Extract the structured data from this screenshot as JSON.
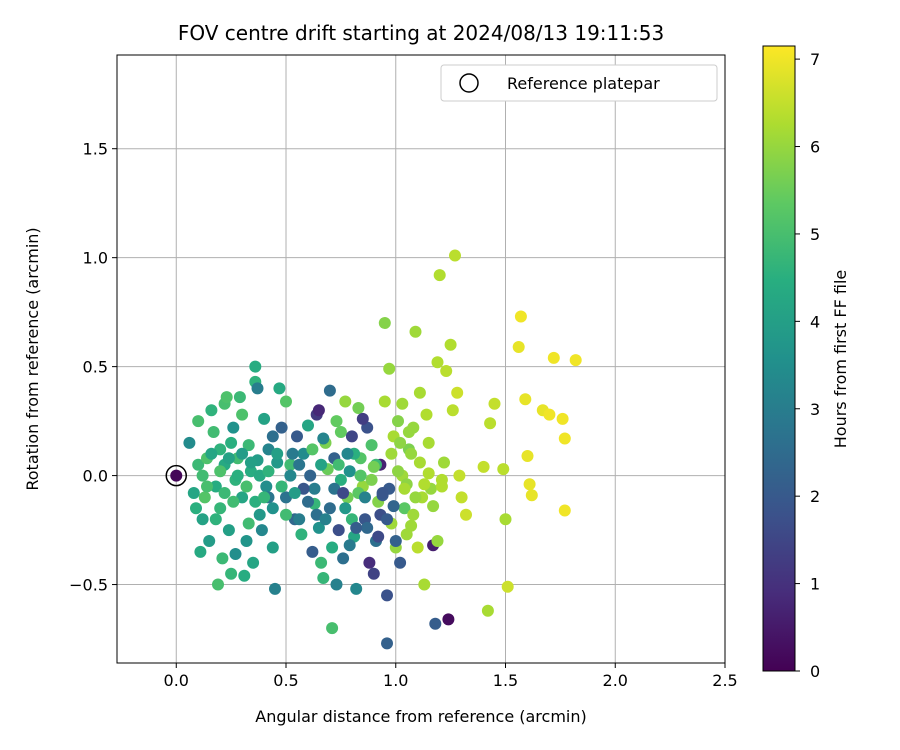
{
  "chart_data": {
    "type": "scatter",
    "title": "FOV centre drift starting at 2024/08/13 19:11:53",
    "xlabel": "Angular distance from reference (arcmin)",
    "ylabel": "Rotation from reference (arcmin)",
    "xlim": [
      -0.27,
      2.5
    ],
    "ylim": [
      -0.86,
      1.93
    ],
    "xticks": [
      "0.0",
      "0.5",
      "1.0",
      "1.5",
      "2.0",
      "2.5"
    ],
    "yticks": [
      "−0.5",
      "0.0",
      "0.5",
      "1.0",
      "1.5"
    ],
    "grid": true,
    "colorbar": {
      "label": "Hours from first FF file",
      "range": [
        0,
        7.15
      ],
      "ticks": [
        "0",
        "1",
        "2",
        "3",
        "4",
        "5",
        "6",
        "7"
      ],
      "colormap": "viridis"
    },
    "legend": {
      "position": "top-right",
      "entries": [
        "Reference platepar"
      ]
    },
    "reference_point": {
      "x": 0.0,
      "y": 0.0,
      "hours": 0.1
    },
    "points": [
      [
        0.06,
        0.15,
        3.4
      ],
      [
        0.08,
        -0.08,
        4.2
      ],
      [
        0.1,
        0.05,
        4.8
      ],
      [
        0.12,
        -0.2,
        4.1
      ],
      [
        0.14,
        0.08,
        5.1
      ],
      [
        0.15,
        -0.3,
        3.9
      ],
      [
        0.17,
        0.2,
        4.9
      ],
      [
        0.18,
        -0.05,
        4.4
      ],
      [
        0.2,
        0.12,
        4.6
      ],
      [
        0.2,
        -0.15,
        4.7
      ],
      [
        0.22,
        0.33,
        5.0
      ],
      [
        0.22,
        0.05,
        4.3
      ],
      [
        0.24,
        -0.25,
        4.0
      ],
      [
        0.25,
        0.15,
        4.5
      ],
      [
        0.26,
        0.22,
        3.6
      ],
      [
        0.27,
        -0.02,
        4.6
      ],
      [
        0.28,
        0.08,
        4.9
      ],
      [
        0.3,
        -0.1,
        4.2
      ],
      [
        0.3,
        0.28,
        5.1
      ],
      [
        0.32,
        -0.3,
        3.7
      ],
      [
        0.33,
        0.14,
        4.8
      ],
      [
        0.34,
        0.02,
        4.4
      ],
      [
        0.36,
        0.5,
        4.4
      ],
      [
        0.36,
        0.43,
        4.6
      ],
      [
        0.37,
        0.4,
        3.0
      ],
      [
        0.38,
        -0.18,
        3.8
      ],
      [
        0.4,
        0.26,
        4.1
      ],
      [
        0.41,
        -0.05,
        3.5
      ],
      [
        0.42,
        0.12,
        3.2
      ],
      [
        0.44,
        0.18,
        2.6
      ],
      [
        0.45,
        -0.52,
        3.1
      ],
      [
        0.47,
        0.4,
        4.3
      ],
      [
        0.48,
        0.22,
        2.2
      ],
      [
        0.5,
        0.34,
        5.2
      ],
      [
        0.5,
        -0.1,
        2.7
      ],
      [
        0.52,
        0.05,
        4.9
      ],
      [
        0.54,
        -0.2,
        2.4
      ],
      [
        0.55,
        0.18,
        2.0
      ],
      [
        0.57,
        -0.27,
        4.6
      ],
      [
        0.58,
        0.1,
        3.4
      ],
      [
        0.6,
        0.23,
        4.2
      ],
      [
        0.62,
        -0.35,
        2.1
      ],
      [
        0.63,
        -0.06,
        3.0
      ],
      [
        0.64,
        0.28,
        1.2
      ],
      [
        0.65,
        0.3,
        0.8
      ],
      [
        0.66,
        -0.4,
        4.8
      ],
      [
        0.67,
        -0.47,
        4.7
      ],
      [
        0.68,
        0.15,
        5.7
      ],
      [
        0.7,
        -0.15,
        2.5
      ],
      [
        0.7,
        0.39,
        2.5
      ],
      [
        0.71,
        -0.7,
        5.0
      ],
      [
        0.72,
        0.08,
        2.2
      ],
      [
        0.73,
        -0.5,
        3.1
      ],
      [
        0.74,
        -0.25,
        1.7
      ],
      [
        0.75,
        0.2,
        5.4
      ],
      [
        0.76,
        -0.38,
        2.6
      ],
      [
        0.77,
        0.34,
        6.0
      ],
      [
        0.78,
        -0.1,
        5.6
      ],
      [
        0.79,
        0.02,
        3.6
      ],
      [
        0.8,
        0.18,
        1.5
      ],
      [
        0.81,
        -0.28,
        4.2
      ],
      [
        0.82,
        -0.52,
        3.3
      ],
      [
        0.83,
        0.31,
        5.6
      ],
      [
        0.84,
        0.08,
        5.2
      ],
      [
        0.85,
        -0.05,
        6.0
      ],
      [
        0.86,
        -0.2,
        1.9
      ],
      [
        0.87,
        0.22,
        1.8
      ],
      [
        0.88,
        -0.4,
        0.9
      ],
      [
        0.89,
        0.14,
        5.1
      ],
      [
        0.9,
        -0.45,
        1.4
      ],
      [
        0.91,
        -0.3,
        2.6
      ],
      [
        0.92,
        -0.12,
        5.8
      ],
      [
        0.93,
        0.05,
        0.7
      ],
      [
        0.94,
        -0.09,
        2.0
      ],
      [
        0.95,
        0.34,
        6.2
      ],
      [
        0.95,
        0.7,
        5.8
      ],
      [
        0.96,
        -0.77,
        2.2
      ],
      [
        0.96,
        -0.55,
        1.8
      ],
      [
        0.97,
        0.49,
        6.0
      ],
      [
        0.98,
        -0.22,
        6.1
      ],
      [
        0.99,
        0.18,
        6.2
      ],
      [
        1.0,
        -0.33,
        6.0
      ],
      [
        1.01,
        0.25,
        5.8
      ],
      [
        1.02,
        -0.4,
        2.0
      ],
      [
        1.03,
        0.0,
        6.1
      ],
      [
        1.04,
        -0.15,
        5.3
      ],
      [
        1.05,
        -0.04,
        5.9
      ],
      [
        1.06,
        0.12,
        5.7
      ],
      [
        1.07,
        -0.23,
        6.1
      ],
      [
        1.08,
        0.22,
        6.0
      ],
      [
        1.09,
        0.66,
        6.1
      ],
      [
        1.1,
        -0.33,
        6.4
      ],
      [
        1.11,
        0.38,
        6.2
      ],
      [
        1.12,
        -0.1,
        6.2
      ],
      [
        1.13,
        -0.5,
        6.2
      ],
      [
        1.14,
        0.28,
        6.3
      ],
      [
        1.15,
        0.01,
        6.3
      ],
      [
        1.16,
        -0.06,
        6.0
      ],
      [
        1.17,
        -0.32,
        0.6
      ],
      [
        1.18,
        -0.68,
        2.1
      ],
      [
        1.19,
        0.52,
        6.3
      ],
      [
        1.2,
        0.92,
        6.3
      ],
      [
        1.21,
        -0.05,
        6.3
      ],
      [
        1.22,
        0.06,
        6.1
      ],
      [
        1.23,
        0.48,
        6.4
      ],
      [
        1.24,
        -0.66,
        0.2
      ],
      [
        1.25,
        0.6,
        6.3
      ],
      [
        1.26,
        0.3,
        6.4
      ],
      [
        1.27,
        1.01,
        6.4
      ],
      [
        1.28,
        0.38,
        6.6
      ],
      [
        1.29,
        0.0,
        6.5
      ],
      [
        1.3,
        -0.1,
        6.5
      ],
      [
        1.32,
        -0.18,
        6.6
      ],
      [
        1.4,
        0.04,
        6.5
      ],
      [
        1.42,
        -0.62,
        6.2
      ],
      [
        1.43,
        0.24,
        6.4
      ],
      [
        1.45,
        0.33,
        6.5
      ],
      [
        1.49,
        0.03,
        6.4
      ],
      [
        1.5,
        -0.2,
        6.2
      ],
      [
        1.51,
        -0.51,
        6.6
      ],
      [
        1.56,
        0.59,
        6.9
      ],
      [
        1.57,
        0.73,
        7.0
      ],
      [
        1.59,
        0.35,
        6.9
      ],
      [
        1.6,
        0.09,
        6.9
      ],
      [
        1.61,
        -0.04,
        6.9
      ],
      [
        1.62,
        -0.09,
        6.9
      ],
      [
        1.67,
        0.3,
        6.9
      ],
      [
        1.7,
        0.28,
        7.0
      ],
      [
        1.72,
        0.54,
        7.0
      ],
      [
        1.76,
        0.26,
        7.0
      ],
      [
        1.77,
        0.17,
        7.0
      ],
      [
        1.77,
        -0.16,
        7.0
      ],
      [
        1.82,
        0.53,
        7.0
      ],
      [
        0.1,
        0.25,
        5.0
      ],
      [
        0.11,
        -0.35,
        4.3
      ],
      [
        0.13,
        -0.1,
        5.2
      ],
      [
        0.16,
        0.3,
        4.6
      ],
      [
        0.19,
        -0.5,
        5.0
      ],
      [
        0.21,
        -0.38,
        4.8
      ],
      [
        0.23,
        0.36,
        5.1
      ],
      [
        0.25,
        -0.45,
        4.7
      ],
      [
        0.27,
        -0.36,
        3.5
      ],
      [
        0.29,
        0.36,
        4.8
      ],
      [
        0.31,
        -0.46,
        4.4
      ],
      [
        0.33,
        -0.22,
        4.9
      ],
      [
        0.35,
        -0.4,
        4.2
      ],
      [
        0.37,
        0.07,
        3.9
      ],
      [
        0.39,
        -0.25,
        3.3
      ],
      [
        0.42,
        -0.1,
        2.8
      ],
      [
        0.44,
        -0.33,
        4.0
      ],
      [
        0.46,
        0.06,
        3.8
      ],
      [
        0.48,
        -0.05,
        4.7
      ],
      [
        0.53,
        0.1,
        2.9
      ],
      [
        0.56,
        -0.2,
        3.0
      ],
      [
        0.58,
        -0.06,
        1.9
      ],
      [
        0.61,
        0.0,
        2.3
      ],
      [
        0.63,
        -0.13,
        4.7
      ],
      [
        0.65,
        -0.24,
        3.6
      ],
      [
        0.67,
        0.17,
        3.2
      ],
      [
        0.69,
        0.03,
        5.5
      ],
      [
        0.71,
        -0.33,
        4.4
      ],
      [
        0.73,
        0.25,
        5.4
      ],
      [
        0.75,
        -0.02,
        4.5
      ],
      [
        0.77,
        -0.15,
        3.8
      ],
      [
        0.79,
        -0.32,
        2.9
      ],
      [
        0.81,
        0.1,
        4.5
      ],
      [
        0.83,
        -0.08,
        5.3
      ],
      [
        0.85,
        0.26,
        1.3
      ],
      [
        0.87,
        -0.24,
        2.4
      ],
      [
        0.89,
        -0.02,
        5.7
      ],
      [
        0.91,
        0.05,
        4.8
      ],
      [
        0.93,
        -0.18,
        1.7
      ],
      [
        0.97,
        -0.06,
        2.0
      ],
      [
        0.99,
        -0.14,
        2.3
      ],
      [
        1.01,
        0.02,
        5.9
      ],
      [
        1.03,
        0.33,
        6.1
      ],
      [
        1.05,
        -0.27,
        6.1
      ],
      [
        1.07,
        0.1,
        6.0
      ],
      [
        1.09,
        -0.1,
        6.0
      ],
      [
        1.11,
        0.06,
        6.2
      ],
      [
        1.13,
        -0.04,
        6.3
      ],
      [
        1.15,
        0.15,
        6.2
      ],
      [
        1.17,
        -0.14,
        6.0
      ],
      [
        1.19,
        -0.3,
        6.0
      ],
      [
        1.21,
        -0.02,
        6.3
      ],
      [
        0.09,
        -0.15,
        4.5
      ],
      [
        0.12,
        0.0,
        4.9
      ],
      [
        0.14,
        -0.05,
        5.0
      ],
      [
        0.16,
        0.1,
        4.2
      ],
      [
        0.18,
        -0.2,
        4.6
      ],
      [
        0.2,
        0.02,
        5.1
      ],
      [
        0.22,
        -0.08,
        4.8
      ],
      [
        0.24,
        0.08,
        4.1
      ],
      [
        0.26,
        -0.12,
        4.9
      ],
      [
        0.28,
        0.0,
        4.5
      ],
      [
        0.3,
        0.1,
        3.9
      ],
      [
        0.32,
        -0.05,
        5.0
      ],
      [
        0.34,
        0.06,
        4.0
      ],
      [
        0.36,
        -0.12,
        4.5
      ],
      [
        0.38,
        0.0,
        4.3
      ],
      [
        0.4,
        -0.1,
        4.7
      ],
      [
        0.42,
        0.02,
        4.6
      ],
      [
        0.44,
        -0.15,
        3.6
      ],
      [
        0.46,
        0.1,
        4.0
      ],
      [
        0.5,
        -0.18,
        4.9
      ],
      [
        0.52,
        0.0,
        3.3
      ],
      [
        0.54,
        -0.08,
        3.9
      ],
      [
        0.56,
        0.05,
        2.8
      ],
      [
        0.6,
        -0.12,
        2.5
      ],
      [
        0.62,
        0.12,
        5.2
      ],
      [
        0.64,
        -0.18,
        2.6
      ],
      [
        0.66,
        0.05,
        4.1
      ],
      [
        0.68,
        -0.2,
        3.1
      ],
      [
        0.72,
        -0.06,
        2.7
      ],
      [
        0.74,
        0.05,
        4.9
      ],
      [
        0.76,
        -0.08,
        1.6
      ],
      [
        0.78,
        0.1,
        3.3
      ],
      [
        0.8,
        -0.2,
        4.7
      ],
      [
        0.82,
        -0.24,
        2.1
      ],
      [
        0.84,
        0.0,
        5.2
      ],
      [
        0.86,
        -0.1,
        3.1
      ],
      [
        0.9,
        0.04,
        5.6
      ],
      [
        0.92,
        -0.28,
        1.6
      ],
      [
        0.94,
        -0.08,
        1.9
      ],
      [
        0.96,
        -0.2,
        2.0
      ],
      [
        0.98,
        0.1,
        6.1
      ],
      [
        1.0,
        -0.3,
        2.2
      ],
      [
        1.02,
        0.15,
        5.9
      ],
      [
        1.04,
        -0.06,
        6.2
      ],
      [
        1.06,
        0.2,
        6.0
      ],
      [
        1.08,
        -0.18,
        6.1
      ]
    ]
  }
}
